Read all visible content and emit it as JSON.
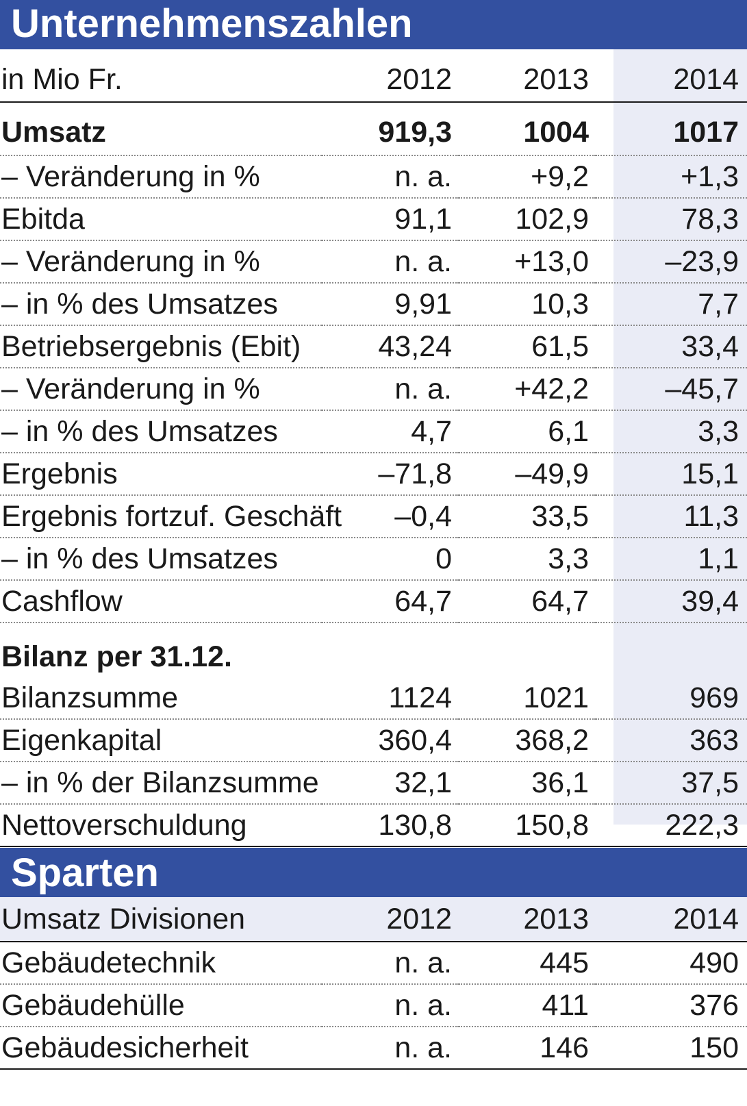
{
  "section1": {
    "title": "Unternehmenszahlen",
    "header": {
      "label": "in Mio Fr.",
      "y2012": "2012",
      "y2013": "2013",
      "y2014": "2014"
    },
    "rows": [
      {
        "label": "Umsatz",
        "v2012": "919,3",
        "v2013": "1004",
        "v2014": "1017"
      },
      {
        "label": "– Veränderung in %",
        "v2012": "n. a.",
        "v2013": "+9,2",
        "v2014": "+1,3"
      },
      {
        "label": "Ebitda",
        "v2012": "91,1",
        "v2013": "102,9",
        "v2014": "78,3"
      },
      {
        "label": "– Veränderung in %",
        "v2012": "n. a.",
        "v2013": "+13,0",
        "v2014": "–23,9"
      },
      {
        "label": "– in % des Umsatzes",
        "v2012": "9,91",
        "v2013": "10,3",
        "v2014": "7,7"
      },
      {
        "label": "Betriebsergebnis (Ebit)",
        "v2012": "43,24",
        "v2013": "61,5",
        "v2014": "33,4"
      },
      {
        "label": "– Veränderung in %",
        "v2012": "n. a.",
        "v2013": "+42,2",
        "v2014": "–45,7"
      },
      {
        "label": "– in % des Umsatzes",
        "v2012": "4,7",
        "v2013": "6,1",
        "v2014": "3,3"
      },
      {
        "label": "Ergebnis",
        "v2012": "–71,8",
        "v2013": "–49,9",
        "v2014": "15,1"
      },
      {
        "label": "Ergebnis fortzuf. Geschäft",
        "v2012": "–0,4",
        "v2013": "33,5",
        "v2014": "11,3"
      },
      {
        "label": "– in % des Umsatzes",
        "v2012": "0",
        "v2013": "3,3",
        "v2014": "1,1"
      },
      {
        "label": "Cashflow",
        "v2012": "64,7",
        "v2013": "64,7",
        "v2014": "39,4"
      }
    ],
    "subheading": "Bilanz per 31.12.",
    "balance_rows": [
      {
        "label": "Bilanzsumme",
        "v2012": "1124",
        "v2013": "1021",
        "v2014": "969"
      },
      {
        "label": "Eigenkapital",
        "v2012": "360,4",
        "v2013": "368,2",
        "v2014": "363"
      },
      {
        "label": "– in % der Bilanzsumme",
        "v2012": "32,1",
        "v2013": "36,1",
        "v2014": "37,5"
      },
      {
        "label": "Nettoverschuldung",
        "v2012": "130,8",
        "v2013": "150,8",
        "v2014": "222,3"
      }
    ]
  },
  "section2": {
    "title": "Sparten",
    "header": {
      "label": "Umsatz Divisionen",
      "y2012": "2012",
      "y2013": "2013",
      "y2014": "2014"
    },
    "rows": [
      {
        "label": "Gebäudetechnik",
        "v2012": "n. a.",
        "v2013": "445",
        "v2014": "490"
      },
      {
        "label": "Gebäudehülle",
        "v2012": "n. a.",
        "v2013": "411",
        "v2014": "376"
      },
      {
        "label": "Gebäudesicherheit",
        "v2012": "n. a.",
        "v2013": "146",
        "v2014": "150"
      }
    ]
  },
  "colors": {
    "banner": "#3350a0",
    "shade": "#eaecf6",
    "text": "#1a1a1a"
  }
}
